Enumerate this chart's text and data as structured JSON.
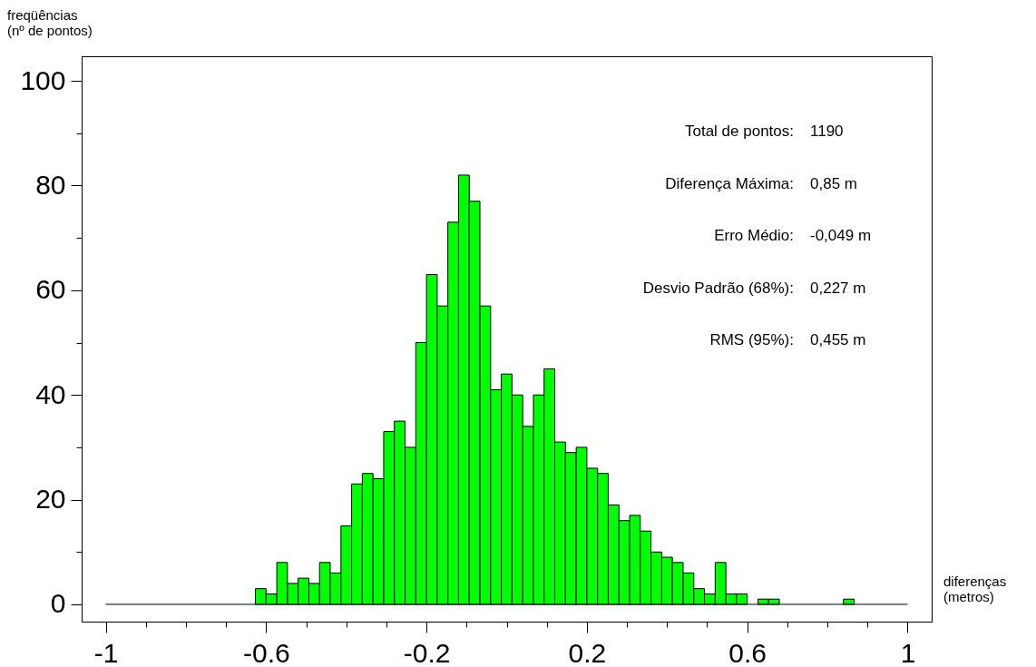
{
  "chart_data": {
    "type": "histogram",
    "ylabel": "freqüências\n(nº de pontos)",
    "xlabel": "diferenças\n(metros)",
    "bins": [
      -1.0,
      -0.9733,
      -0.9467,
      -0.92,
      -0.8933,
      -0.8667,
      -0.84,
      -0.8133,
      -0.7867,
      -0.76,
      -0.7333,
      -0.7067,
      -0.68,
      -0.6533,
      -0.6267,
      -0.6,
      -0.5733,
      -0.5467,
      -0.52,
      -0.4933,
      -0.4667,
      -0.44,
      -0.4133,
      -0.3867,
      -0.36,
      -0.3333,
      -0.3067,
      -0.28,
      -0.2533,
      -0.2267,
      -0.2,
      -0.1733,
      -0.1467,
      -0.12,
      -0.0933,
      -0.0667,
      -0.04,
      -0.0133,
      0.0133,
      0.04,
      0.0667,
      0.0933,
      0.12,
      0.1467,
      0.1733,
      0.2,
      0.2267,
      0.2533,
      0.28,
      0.3067,
      0.3333,
      0.36,
      0.3867,
      0.4133,
      0.44,
      0.4667,
      0.4933,
      0.52,
      0.5467,
      0.5733,
      0.6,
      0.6267,
      0.6533,
      0.68,
      0.7067,
      0.7333,
      0.76,
      0.7867,
      0.8133,
      0.84,
      0.8667,
      0.8933,
      0.92,
      0.9467,
      0.9733,
      1.0
    ],
    "values": [
      0,
      0,
      0,
      0,
      0,
      0,
      0,
      0,
      0,
      0,
      0,
      0,
      0,
      0,
      3,
      2,
      8,
      4,
      5,
      4,
      8,
      6,
      15,
      23,
      25,
      24,
      33,
      35,
      30,
      50,
      63,
      57,
      73,
      82,
      77,
      57,
      41,
      44,
      40,
      34,
      40,
      45,
      31,
      29,
      30,
      26,
      25,
      19,
      16,
      17,
      14,
      10,
      9,
      8,
      6,
      3,
      2,
      8,
      2,
      2,
      0,
      1,
      1,
      0,
      0,
      0,
      0,
      0,
      0,
      1,
      0,
      0,
      0,
      0,
      0
    ],
    "color": "#00ff00",
    "xlim": [
      -1.06,
      1.06
    ],
    "ylim": [
      -3.3,
      104.7
    ],
    "xticks": [
      -1,
      {
        "value": -0.9,
        "label": null
      },
      {
        "value": -0.8,
        "label": null
      },
      {
        "value": -0.7,
        "label": null
      },
      -0.6,
      {
        "value": -0.5,
        "label": null
      },
      {
        "value": -0.4,
        "label": null
      },
      {
        "value": -0.3,
        "label": null
      },
      -0.2,
      {
        "value": -0.1,
        "label": null
      },
      {
        "value": 0,
        "label": null
      },
      {
        "value": 0.1,
        "label": null
      },
      0.2,
      {
        "value": 0.3,
        "label": null
      },
      {
        "value": 0.4,
        "label": null
      },
      {
        "value": 0.5,
        "label": null
      },
      0.6,
      {
        "value": 0.7,
        "label": null
      },
      {
        "value": 0.8,
        "label": null
      },
      {
        "value": 0.9,
        "label": null
      },
      1
    ],
    "yticks": [
      0,
      {
        "value": 10,
        "label": null
      },
      20,
      {
        "value": 30,
        "label": null
      },
      40,
      {
        "value": 50,
        "label": null
      },
      60,
      {
        "value": 70,
        "label": null
      },
      80,
      {
        "value": 90,
        "label": null
      },
      100
    ],
    "annotations": [
      "Total de pontos:",
      "1190",
      "Diferença Máxima:",
      "0,85 m",
      "Erro Médio:",
      "-0,049 m",
      "Desvio Padrão (68%):",
      "0,227 m",
      "RMS (95%):",
      "0,455 m"
    ]
  }
}
